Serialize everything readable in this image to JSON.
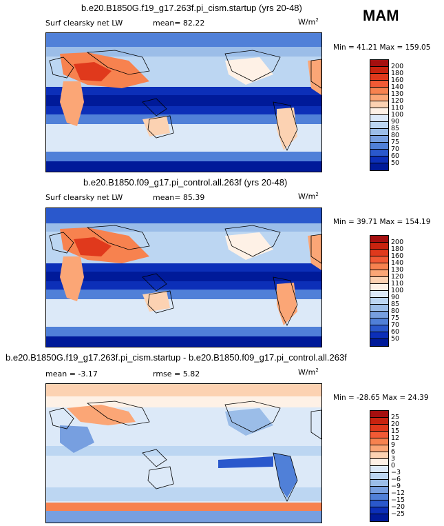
{
  "season": "MAM",
  "panels": [
    {
      "title": "b.e20.B1850G.f19_g17.263f.pi_cism.startup (yrs 20-48)",
      "variable": "Surf clearsky net LW",
      "mean_text": "mean=  82.22",
      "units": "W/m",
      "units_sup": "2",
      "minmax": "Min =  41.21 Max = 159.05"
    },
    {
      "title": "b.e20.B1850.f09_g17.pi_control.all.263f (yrs 20-48)",
      "variable": "Surf clearsky net LW",
      "mean_text": "mean=  85.39",
      "units": "W/m",
      "units_sup": "2",
      "minmax": "Min =  39.71 Max = 154.19"
    },
    {
      "title": "b.e20.B1850G.f19_g17.263f.pi_cism.startup - b.e20.B1850.f09_g17.pi_control.all.263f",
      "variable": "mean =  -3.17",
      "mean_text": "rmse =  5.82",
      "units": "W/m",
      "units_sup": "2",
      "minmax": "Min = -28.65 Max =  24.39"
    }
  ],
  "chart_data": [
    {
      "type": "heatmap",
      "title": "b.e20.B1850G.f19_g17.263f.pi_cism.startup (yrs 20-48)",
      "variable": "Surf clearsky net LW",
      "mean": 82.22,
      "min": 41.21,
      "max": 159.05,
      "units": "W/m2",
      "colorbar_levels": [
        "200",
        "180",
        "160",
        "140",
        "130",
        "120",
        "110",
        "100",
        "90",
        "85",
        "80",
        "75",
        "70",
        "60",
        "50"
      ],
      "colors": [
        "#a50f0f",
        "#c8230f",
        "#e0391c",
        "#f25a35",
        "#f7824f",
        "#fba676",
        "#fcd2b2",
        "#fef1e6",
        "#dce9f8",
        "#bcd6f2",
        "#9bbde8",
        "#779fe0",
        "#5080d8",
        "#2a58cc",
        "#0c2fb8",
        "#001a99"
      ]
    },
    {
      "type": "heatmap",
      "title": "b.e20.B1850.f09_g17.pi_control.all.263f (yrs 20-48)",
      "variable": "Surf clearsky net LW",
      "mean": 85.39,
      "min": 39.71,
      "max": 154.19,
      "units": "W/m2",
      "colorbar_levels": [
        "200",
        "180",
        "160",
        "140",
        "130",
        "120",
        "110",
        "100",
        "90",
        "85",
        "80",
        "75",
        "70",
        "60",
        "50"
      ],
      "colors": [
        "#a50f0f",
        "#c8230f",
        "#e0391c",
        "#f25a35",
        "#f7824f",
        "#fba676",
        "#fcd2b2",
        "#fef1e6",
        "#dce9f8",
        "#bcd6f2",
        "#9bbde8",
        "#779fe0",
        "#5080d8",
        "#2a58cc",
        "#0c2fb8",
        "#001a99"
      ]
    },
    {
      "type": "heatmap",
      "title": "b.e20.B1850G.f19_g17.263f.pi_cism.startup - b.e20.B1850.f09_g17.pi_control.all.263f",
      "mean": -3.17,
      "rmse": 5.82,
      "min": -28.65,
      "max": 24.39,
      "units": "W/m2",
      "colorbar_levels": [
        "25",
        "20",
        "15",
        "12",
        "9",
        "6",
        "3",
        "0",
        "−3",
        "−6",
        "−9",
        "−12",
        "−15",
        "−20",
        "−25"
      ],
      "colors": [
        "#a50f0f",
        "#c8230f",
        "#e0391c",
        "#f25a35",
        "#f7824f",
        "#fba676",
        "#fcd2b2",
        "#fef1e6",
        "#dce9f8",
        "#bcd6f2",
        "#9bbde8",
        "#779fe0",
        "#5080d8",
        "#2a58cc",
        "#0c2fb8",
        "#001a99"
      ]
    }
  ]
}
